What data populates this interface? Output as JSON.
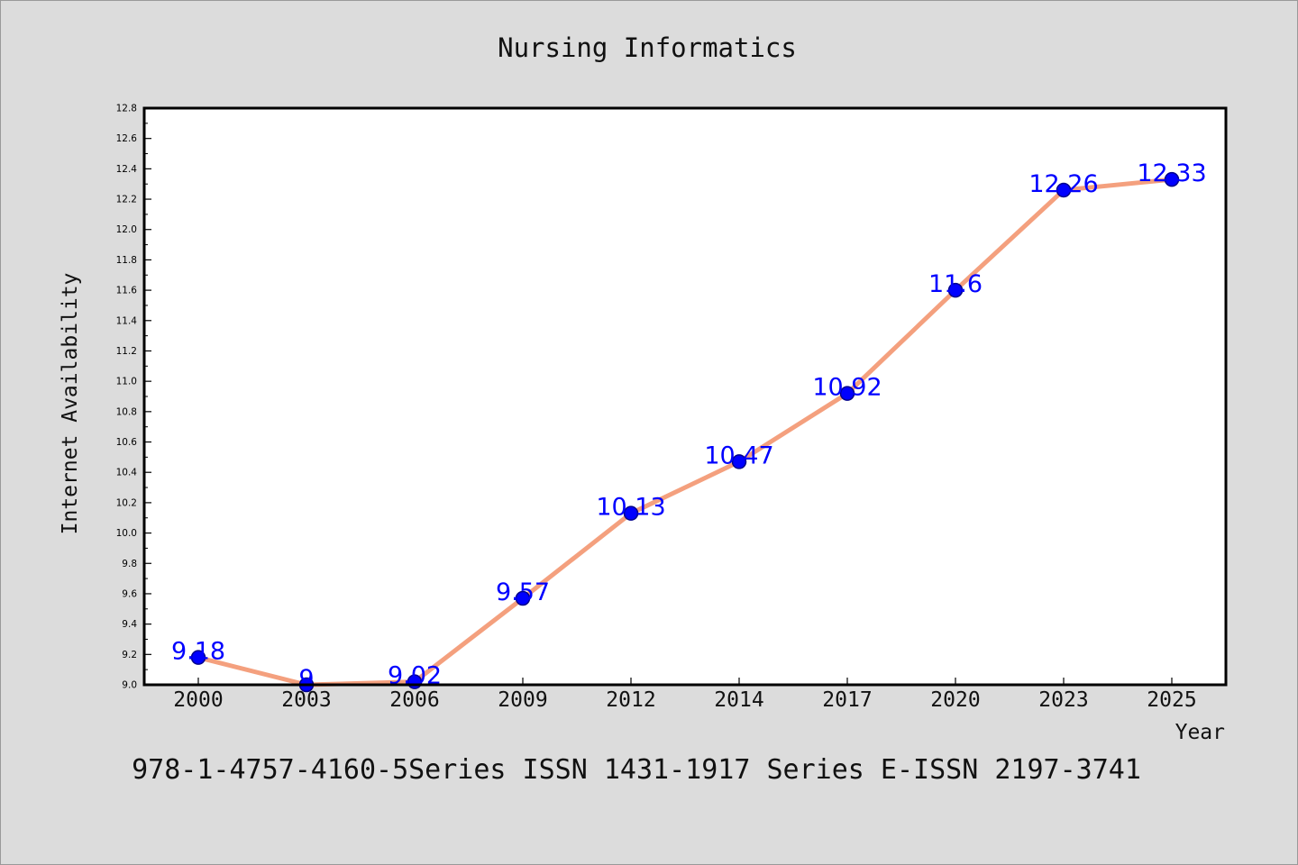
{
  "chart_data": {
    "type": "line",
    "title": "Nursing Informatics",
    "xlabel": "Year",
    "ylabel": "Internet Availability",
    "footer": "978-1-4757-4160-5Series ISSN 1431-1917 Series E-ISSN 2197-3741",
    "categories": [
      "2000",
      "2003",
      "2006",
      "2009",
      "2012",
      "2014",
      "2017",
      "2020",
      "2023",
      "2025"
    ],
    "values": [
      9.18,
      9.0,
      9.02,
      9.57,
      10.13,
      10.47,
      10.92,
      11.6,
      12.26,
      12.33
    ],
    "data_labels": [
      "9.18",
      "9",
      "9.02",
      "9.57",
      "10.13",
      "10.47",
      "10.92",
      "11.6",
      "12.26",
      "12.33"
    ],
    "ylim": [
      9.0,
      12.8
    ],
    "y_ticks": [
      "9.0",
      "9.2",
      "9.4",
      "9.6",
      "9.8",
      "10.0",
      "10.2",
      "10.4",
      "10.6",
      "10.8",
      "11.0",
      "11.2",
      "11.4",
      "11.6",
      "11.8",
      "12.0",
      "12.2",
      "12.4",
      "12.6",
      "12.8"
    ],
    "grid": false,
    "legend": "none",
    "colors": {
      "line": "#f4a07e",
      "marker": "#0000ff",
      "marker_edge": "#00008b",
      "label": "#0000ff",
      "background": "#dcdcdc",
      "plot_background": "#ffffff"
    }
  }
}
